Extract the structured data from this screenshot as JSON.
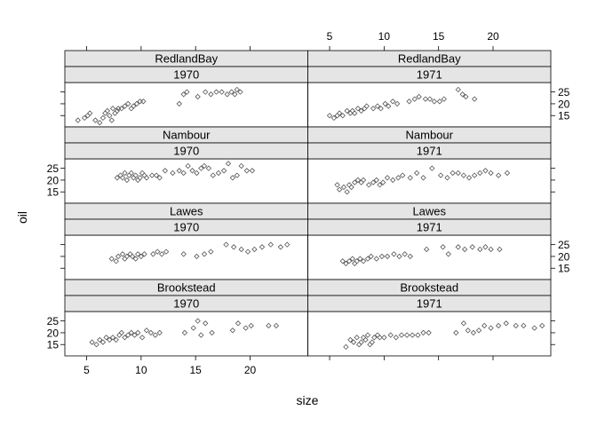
{
  "chart_data": {
    "type": "scatter",
    "xlabel": "size",
    "ylabel": "oil",
    "xlim": [
      3,
      25.3
    ],
    "ylim": [
      10.2,
      29.0
    ],
    "x_ticks": [
      5,
      10,
      15,
      20
    ],
    "y_ticks": [
      15,
      20,
      25
    ],
    "layout": {
      "columns": 2,
      "rows": 4
    },
    "point_color": "#555555",
    "strip_color": "#e5e5e5",
    "panels": [
      {
        "site": "RedlandBay",
        "year": "1970",
        "points": [
          [
            4.2,
            13
          ],
          [
            4.8,
            14
          ],
          [
            5.1,
            15
          ],
          [
            5.3,
            16
          ],
          [
            5.8,
            13
          ],
          [
            6.2,
            12
          ],
          [
            6.5,
            14
          ],
          [
            6.7,
            16
          ],
          [
            6.9,
            17
          ],
          [
            7.1,
            15
          ],
          [
            7.3,
            13
          ],
          [
            7.4,
            18
          ],
          [
            7.6,
            16
          ],
          [
            7.8,
            17
          ],
          [
            7.9,
            18
          ],
          [
            8.2,
            18
          ],
          [
            8.5,
            19
          ],
          [
            8.8,
            20
          ],
          [
            9.1,
            18
          ],
          [
            9.3,
            19
          ],
          [
            9.6,
            20
          ],
          [
            9.9,
            21
          ],
          [
            10.2,
            21
          ],
          [
            13.5,
            20
          ],
          [
            13.9,
            24
          ],
          [
            14.2,
            25
          ],
          [
            15.2,
            23
          ],
          [
            15.9,
            25
          ],
          [
            16.4,
            24
          ],
          [
            16.9,
            25
          ],
          [
            17.4,
            25
          ],
          [
            17.9,
            24
          ],
          [
            18.3,
            25
          ],
          [
            18.6,
            24
          ],
          [
            18.8,
            26
          ],
          [
            19.1,
            25
          ]
        ]
      },
      {
        "site": "RedlandBay",
        "year": "1971",
        "points": [
          [
            5.0,
            15
          ],
          [
            5.4,
            14
          ],
          [
            5.7,
            15
          ],
          [
            5.9,
            16
          ],
          [
            6.2,
            15
          ],
          [
            6.6,
            17
          ],
          [
            6.9,
            16
          ],
          [
            7.1,
            17
          ],
          [
            7.3,
            16
          ],
          [
            7.6,
            18
          ],
          [
            7.9,
            17
          ],
          [
            8.2,
            18
          ],
          [
            8.4,
            19
          ],
          [
            9.0,
            18
          ],
          [
            9.4,
            19
          ],
          [
            9.7,
            18
          ],
          [
            10.1,
            20
          ],
          [
            10.4,
            19
          ],
          [
            10.8,
            21
          ],
          [
            11.2,
            20
          ],
          [
            12.3,
            21
          ],
          [
            12.8,
            22
          ],
          [
            13.2,
            23
          ],
          [
            13.8,
            22
          ],
          [
            14.2,
            22
          ],
          [
            14.6,
            21
          ],
          [
            15.1,
            21
          ],
          [
            15.5,
            22
          ],
          [
            16.8,
            26
          ],
          [
            17.2,
            24
          ],
          [
            17.5,
            23
          ],
          [
            18.3,
            22
          ]
        ]
      },
      {
        "site": "Nambour",
        "year": "1970",
        "points": [
          [
            7.8,
            21
          ],
          [
            8.1,
            22
          ],
          [
            8.3,
            21
          ],
          [
            8.5,
            23
          ],
          [
            8.7,
            20
          ],
          [
            8.9,
            22
          ],
          [
            9.1,
            23
          ],
          [
            9.3,
            21
          ],
          [
            9.5,
            22
          ],
          [
            9.7,
            20
          ],
          [
            9.9,
            21
          ],
          [
            10.1,
            23
          ],
          [
            10.3,
            22
          ],
          [
            10.5,
            21
          ],
          [
            11.0,
            22
          ],
          [
            11.4,
            22
          ],
          [
            11.7,
            21
          ],
          [
            12.2,
            24
          ],
          [
            12.9,
            23
          ],
          [
            13.5,
            24
          ],
          [
            13.9,
            23
          ],
          [
            14.3,
            26
          ],
          [
            14.7,
            24
          ],
          [
            15.1,
            23
          ],
          [
            15.5,
            25
          ],
          [
            15.8,
            26
          ],
          [
            16.2,
            25
          ],
          [
            16.6,
            22
          ],
          [
            17.1,
            23
          ],
          [
            17.6,
            24
          ],
          [
            18.0,
            27
          ],
          [
            18.4,
            21
          ],
          [
            18.8,
            22
          ],
          [
            19.2,
            26
          ],
          [
            19.7,
            24
          ],
          [
            20.2,
            24
          ]
        ]
      },
      {
        "site": "Nambour",
        "year": "1971",
        "points": [
          [
            5.7,
            18
          ],
          [
            5.9,
            16
          ],
          [
            6.3,
            17
          ],
          [
            6.6,
            15
          ],
          [
            6.8,
            18
          ],
          [
            7.0,
            17
          ],
          [
            7.3,
            19
          ],
          [
            7.6,
            20
          ],
          [
            7.9,
            19
          ],
          [
            8.1,
            20
          ],
          [
            8.6,
            18
          ],
          [
            9.0,
            19
          ],
          [
            9.3,
            20
          ],
          [
            9.6,
            18
          ],
          [
            9.9,
            19
          ],
          [
            10.3,
            21
          ],
          [
            10.8,
            20
          ],
          [
            11.3,
            21
          ],
          [
            11.7,
            22
          ],
          [
            12.4,
            21
          ],
          [
            13.0,
            23
          ],
          [
            13.6,
            21
          ],
          [
            14.4,
            25
          ],
          [
            15.2,
            22
          ],
          [
            15.8,
            21
          ],
          [
            16.3,
            23
          ],
          [
            16.8,
            23
          ],
          [
            17.3,
            22
          ],
          [
            17.8,
            21
          ],
          [
            18.3,
            22
          ],
          [
            18.8,
            23
          ],
          [
            19.3,
            24
          ],
          [
            19.8,
            23
          ],
          [
            20.5,
            22
          ],
          [
            21.3,
            23
          ]
        ]
      },
      {
        "site": "Lawes",
        "year": "1970",
        "points": [
          [
            7.3,
            19
          ],
          [
            7.7,
            18
          ],
          [
            7.9,
            20
          ],
          [
            8.3,
            21
          ],
          [
            8.5,
            19
          ],
          [
            8.7,
            20
          ],
          [
            9.0,
            21
          ],
          [
            9.2,
            20
          ],
          [
            9.5,
            19
          ],
          [
            9.7,
            21
          ],
          [
            10.0,
            20
          ],
          [
            10.3,
            21
          ],
          [
            11.1,
            21
          ],
          [
            11.5,
            22
          ],
          [
            11.9,
            21
          ],
          [
            12.3,
            22
          ],
          [
            13.9,
            21
          ],
          [
            15.1,
            20
          ],
          [
            15.8,
            21
          ],
          [
            16.4,
            22
          ],
          [
            17.8,
            25
          ],
          [
            18.5,
            24
          ],
          [
            19.2,
            23
          ],
          [
            19.8,
            22
          ],
          [
            20.4,
            23
          ],
          [
            21.1,
            24
          ],
          [
            21.9,
            25
          ],
          [
            22.8,
            24
          ],
          [
            23.4,
            25
          ]
        ]
      },
      {
        "site": "Lawes",
        "year": "1971",
        "points": [
          [
            6.2,
            18
          ],
          [
            6.5,
            17
          ],
          [
            6.8,
            18
          ],
          [
            7.1,
            19
          ],
          [
            7.3,
            17
          ],
          [
            7.5,
            18
          ],
          [
            7.8,
            19
          ],
          [
            8.1,
            18
          ],
          [
            8.5,
            19
          ],
          [
            8.8,
            20
          ],
          [
            9.3,
            19
          ],
          [
            9.8,
            20
          ],
          [
            10.3,
            20
          ],
          [
            10.9,
            21
          ],
          [
            11.4,
            20
          ],
          [
            11.9,
            21
          ],
          [
            12.4,
            20
          ],
          [
            13.9,
            23
          ],
          [
            15.4,
            24
          ],
          [
            15.9,
            21
          ],
          [
            16.8,
            24
          ],
          [
            17.4,
            23
          ],
          [
            18.1,
            24
          ],
          [
            18.8,
            23
          ],
          [
            19.3,
            24
          ],
          [
            19.8,
            23
          ],
          [
            20.6,
            23
          ]
        ]
      },
      {
        "site": "Brookstead",
        "year": "1970",
        "points": [
          [
            5.5,
            16
          ],
          [
            5.9,
            15
          ],
          [
            6.2,
            17
          ],
          [
            6.5,
            16
          ],
          [
            6.8,
            18
          ],
          [
            7.1,
            17
          ],
          [
            7.4,
            18
          ],
          [
            7.7,
            17
          ],
          [
            8.0,
            19
          ],
          [
            8.2,
            20
          ],
          [
            8.5,
            18
          ],
          [
            8.8,
            19
          ],
          [
            9.1,
            20
          ],
          [
            9.4,
            19
          ],
          [
            9.7,
            20
          ],
          [
            10.1,
            18
          ],
          [
            10.5,
            21
          ],
          [
            10.9,
            20
          ],
          [
            11.3,
            19
          ],
          [
            11.7,
            20
          ],
          [
            14.0,
            20
          ],
          [
            14.8,
            22
          ],
          [
            15.2,
            25
          ],
          [
            15.5,
            19
          ],
          [
            15.9,
            24
          ],
          [
            16.5,
            20
          ],
          [
            18.4,
            21
          ],
          [
            18.9,
            24
          ],
          [
            19.6,
            22
          ],
          [
            20.1,
            23
          ],
          [
            21.7,
            23
          ],
          [
            22.4,
            23
          ]
        ]
      },
      {
        "site": "Brookstead",
        "year": "1971",
        "points": [
          [
            6.5,
            14
          ],
          [
            6.9,
            17
          ],
          [
            7.2,
            16
          ],
          [
            7.5,
            18
          ],
          [
            7.7,
            15
          ],
          [
            7.9,
            16
          ],
          [
            8.1,
            18
          ],
          [
            8.3,
            17
          ],
          [
            8.5,
            19
          ],
          [
            8.7,
            15
          ],
          [
            8.9,
            16
          ],
          [
            9.1,
            18
          ],
          [
            9.4,
            19
          ],
          [
            9.6,
            18
          ],
          [
            10.0,
            18
          ],
          [
            10.6,
            19
          ],
          [
            11.1,
            18
          ],
          [
            11.6,
            19
          ],
          [
            12.1,
            19
          ],
          [
            12.6,
            19
          ],
          [
            13.1,
            19
          ],
          [
            13.6,
            20
          ],
          [
            14.1,
            20
          ],
          [
            16.6,
            20
          ],
          [
            17.3,
            24
          ],
          [
            17.7,
            21
          ],
          [
            18.2,
            20
          ],
          [
            18.7,
            21
          ],
          [
            19.2,
            23
          ],
          [
            19.8,
            22
          ],
          [
            20.5,
            23
          ],
          [
            21.2,
            24
          ],
          [
            22.1,
            23
          ],
          [
            22.8,
            23
          ],
          [
            23.8,
            22
          ],
          [
            24.5,
            23
          ]
        ]
      }
    ]
  }
}
